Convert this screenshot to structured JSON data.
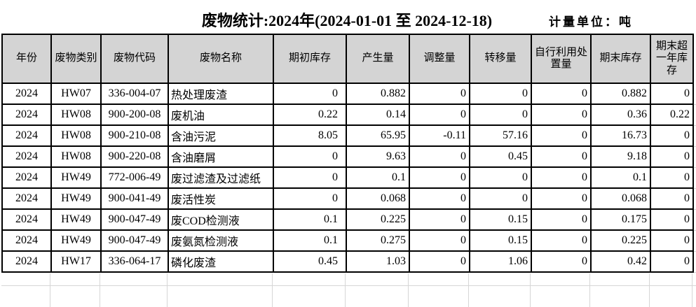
{
  "header": {
    "title": "废物统计:2024年(2024-01-01 至 2024-12-18)",
    "unit_label": "计量单位：吨"
  },
  "table": {
    "columns": [
      "年份",
      "废物类别",
      "废物代码",
      "废物名称",
      "期初库存",
      "产生量",
      "调整量",
      "转移量",
      "自行利用处\n置量",
      "期末库存",
      "期末超\n一年库\n存"
    ],
    "rows": [
      [
        "2024",
        "HW07",
        "336-004-07",
        "热处理废渣",
        "0",
        "0.882",
        "0",
        "0",
        "0",
        "0.882",
        "0"
      ],
      [
        "2024",
        "HW08",
        "900-200-08",
        "废机油",
        "0.22",
        "0.14",
        "0",
        "0",
        "0",
        "0.36",
        "0.22"
      ],
      [
        "2024",
        "HW08",
        "900-210-08",
        "含油污泥",
        "8.05",
        "65.95",
        "-0.11",
        "57.16",
        "0",
        "16.73",
        "0"
      ],
      [
        "2024",
        "HW08",
        "900-220-08",
        "含油磨屑",
        "0",
        "9.63",
        "0",
        "0.45",
        "0",
        "9.18",
        "0"
      ],
      [
        "2024",
        "HW49",
        "772-006-49",
        "废过滤渣及过滤纸",
        "0",
        "0.1",
        "0",
        "0",
        "0",
        "0.1",
        "0"
      ],
      [
        "2024",
        "HW49",
        "900-041-49",
        "废活性炭",
        "0",
        "0.068",
        "0",
        "0",
        "0",
        "0.068",
        "0"
      ],
      [
        "2024",
        "HW49",
        "900-047-49",
        "废COD检测液",
        "0.1",
        "0.225",
        "0",
        "0.15",
        "0",
        "0.175",
        "0"
      ],
      [
        "2024",
        "HW49",
        "900-047-49",
        "废氨氮检测液",
        "0.1",
        "0.275",
        "0",
        "0.15",
        "0",
        "0.225",
        "0"
      ],
      [
        "2024",
        "HW17",
        "336-064-17",
        "磷化废渣",
        "0.45",
        "1.03",
        "0",
        "1.06",
        "0",
        "0.42",
        "0"
      ]
    ]
  },
  "colors": {
    "header_bg": "#d4d4d4",
    "table_border": "#000000",
    "sheet_gridline": "#d6d6d6"
  }
}
